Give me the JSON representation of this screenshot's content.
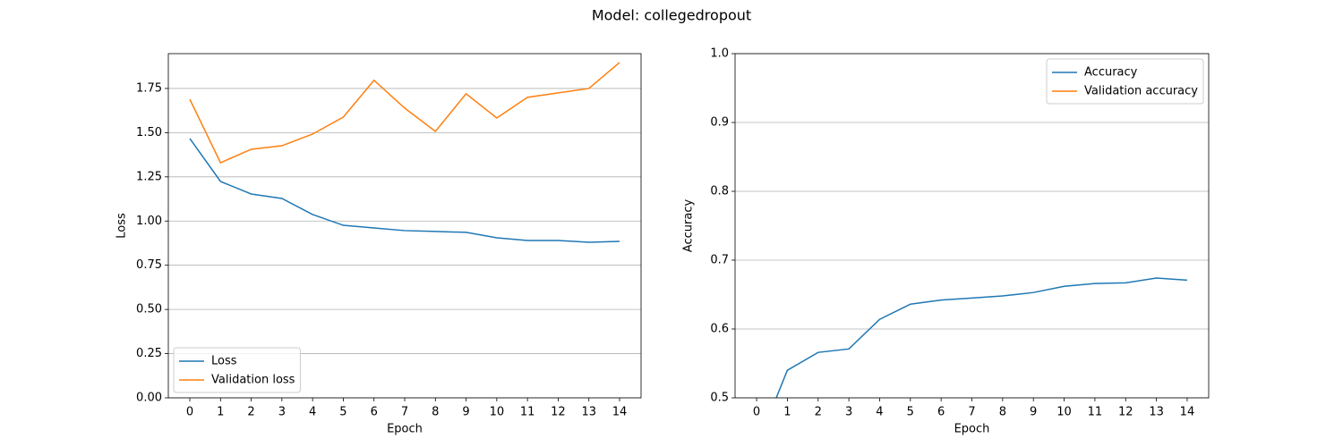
{
  "title": "Model: collegedropout",
  "chart_data": [
    {
      "type": "line",
      "xlabel": "Epoch",
      "ylabel": "Loss",
      "x": [
        0,
        1,
        2,
        3,
        4,
        5,
        6,
        7,
        8,
        9,
        10,
        11,
        12,
        13,
        14
      ],
      "series": [
        {
          "name": "Loss",
          "color": "#1f77b4",
          "values": [
            1.467,
            1.224,
            1.153,
            1.128,
            1.037,
            0.976,
            0.961,
            0.946,
            0.941,
            0.936,
            0.905,
            0.89,
            0.89,
            0.88,
            0.885
          ]
        },
        {
          "name": "Validation loss",
          "color": "#ff7f0e",
          "values": [
            1.689,
            1.33,
            1.406,
            1.426,
            1.492,
            1.588,
            1.796,
            1.639,
            1.507,
            1.72,
            1.583,
            1.7,
            1.725,
            1.75,
            1.897
          ]
        }
      ],
      "xlim": [
        -0.7,
        14.7
      ],
      "xticks": [
        0,
        1,
        2,
        3,
        4,
        5,
        6,
        7,
        8,
        9,
        10,
        11,
        12,
        13,
        14
      ],
      "ylim": [
        0,
        1.947
      ],
      "yticks": [
        {
          "value": 0,
          "label": "0.00"
        },
        {
          "value": 0.25,
          "label": "0.25"
        },
        {
          "value": 0.5,
          "label": "0.50"
        },
        {
          "value": 0.75,
          "label": "0.75"
        },
        {
          "value": 1,
          "label": "1.00"
        },
        {
          "value": 1.25,
          "label": "1.25"
        },
        {
          "value": 1.5,
          "label": "1.50"
        },
        {
          "value": 1.75,
          "label": "1.75"
        }
      ],
      "grid": "y",
      "legend": "lower left"
    },
    {
      "type": "line",
      "xlabel": "Epoch",
      "ylabel": "Accuracy",
      "x": [
        0,
        1,
        2,
        3,
        4,
        5,
        6,
        7,
        8,
        9,
        10,
        11,
        12,
        13,
        14
      ],
      "series": [
        {
          "name": "Accuracy",
          "color": "#1f77b4",
          "values": [
            0.429,
            0.54,
            0.566,
            0.571,
            0.614,
            0.636,
            0.642,
            0.645,
            0.648,
            0.653,
            0.662,
            0.666,
            0.667,
            0.674,
            0.671
          ]
        },
        {
          "name": "Validation accuracy",
          "color": "#ff7f0e",
          "values": [
            null,
            null,
            null,
            null,
            null,
            null,
            null,
            null,
            null,
            null,
            null,
            null,
            null,
            null,
            null
          ]
        }
      ],
      "xlim": [
        -0.7,
        14.7
      ],
      "xticks": [
        0,
        1,
        2,
        3,
        4,
        5,
        6,
        7,
        8,
        9,
        10,
        11,
        12,
        13,
        14
      ],
      "ylim": [
        0.5,
        1.0
      ],
      "yticks": [
        0.5,
        0.6,
        0.7,
        0.8,
        0.9,
        {
          "value": 1,
          "label": "1.0"
        }
      ],
      "grid": "y",
      "legend": "upper right"
    }
  ]
}
